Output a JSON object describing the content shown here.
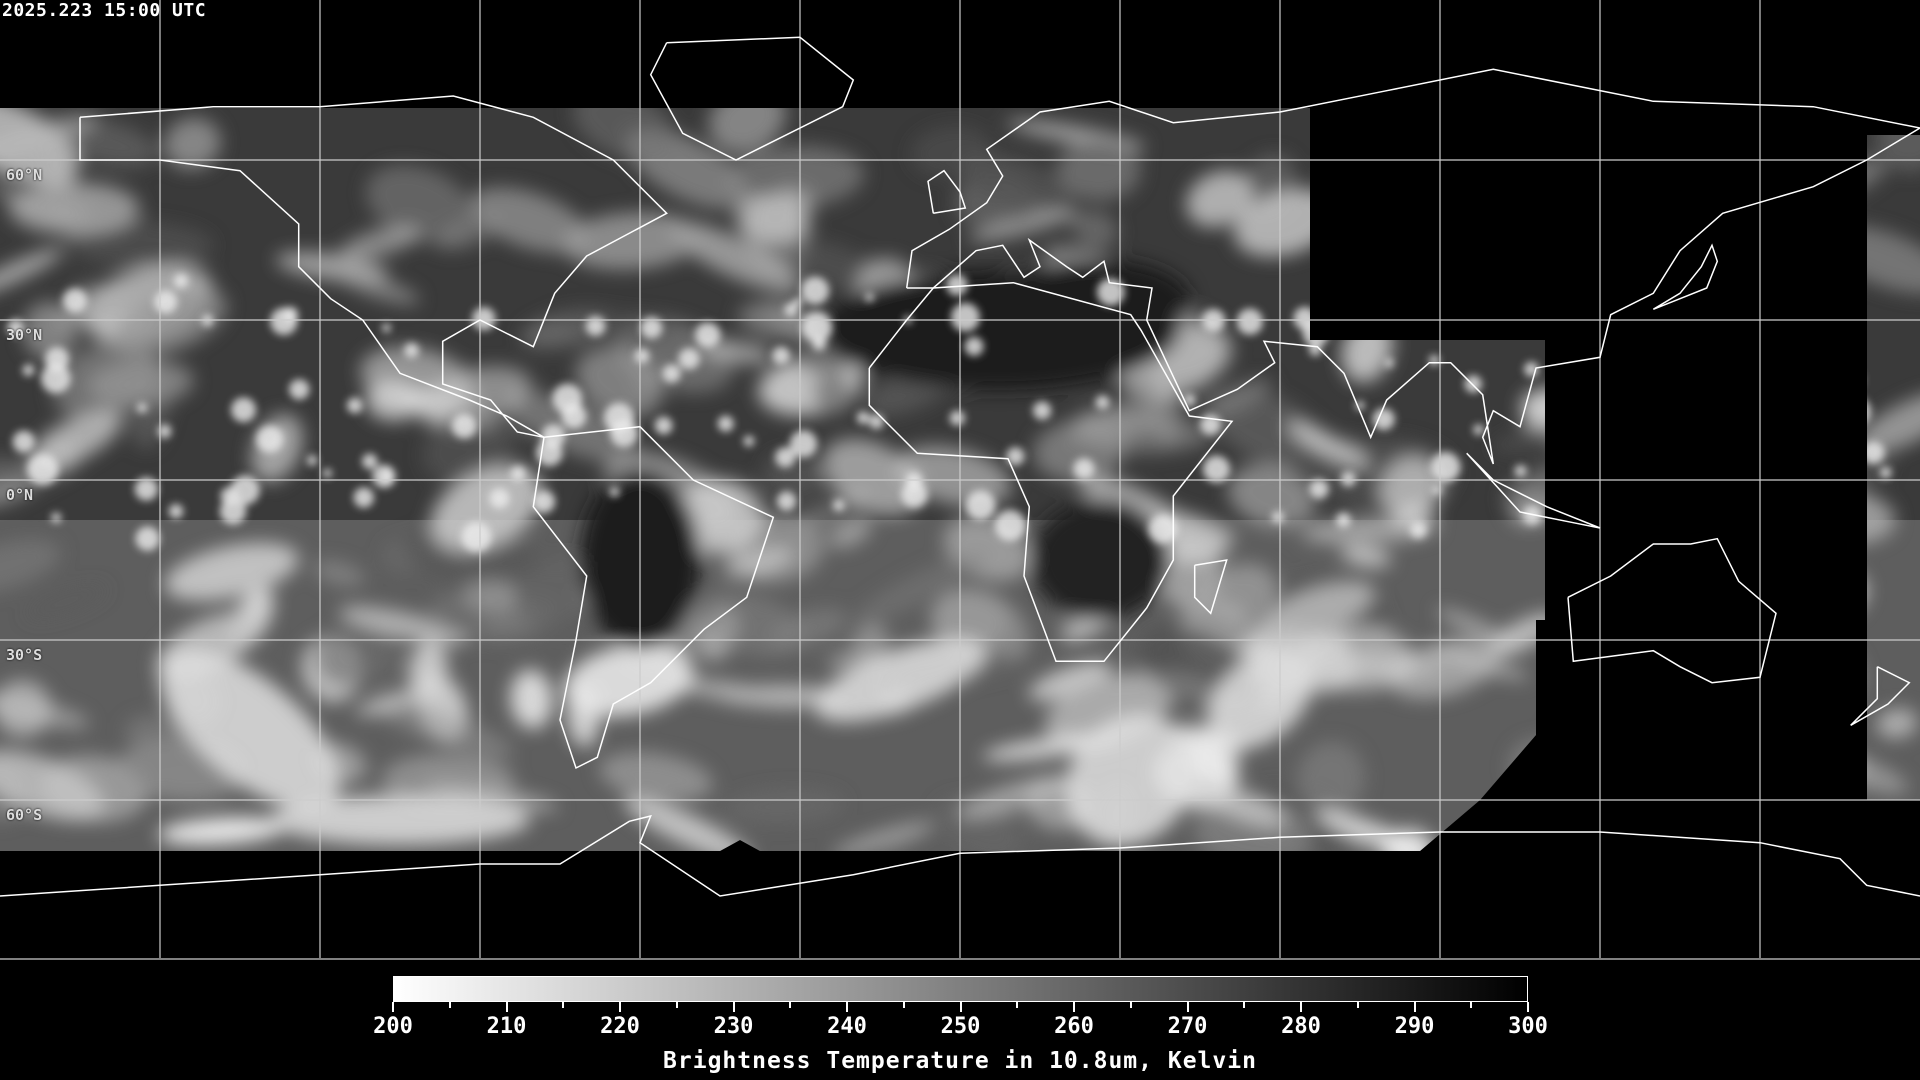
{
  "timestamp": "2025.223 15:00 UTC",
  "map": {
    "projection": "equirectangular",
    "lon_range": [
      -180,
      180
    ],
    "lat_range": [
      -90,
      90
    ],
    "grid_spacing_deg": 30,
    "lat_labels": [
      "60°N",
      "30°N",
      "0°N",
      "30°S",
      "60°S"
    ],
    "coastline_color": "#ffffff",
    "grid_color": "#ffffff",
    "no_data_color": "#000000"
  },
  "colorbar": {
    "min": 200,
    "max": 300,
    "ticks": [
      "200",
      "210",
      "220",
      "230",
      "240",
      "250",
      "260",
      "270",
      "280",
      "290",
      "300"
    ],
    "colormap": "greys (200 white → 300 black)",
    "title": "Brightness Temperature in 10.8um, Kelvin"
  }
}
